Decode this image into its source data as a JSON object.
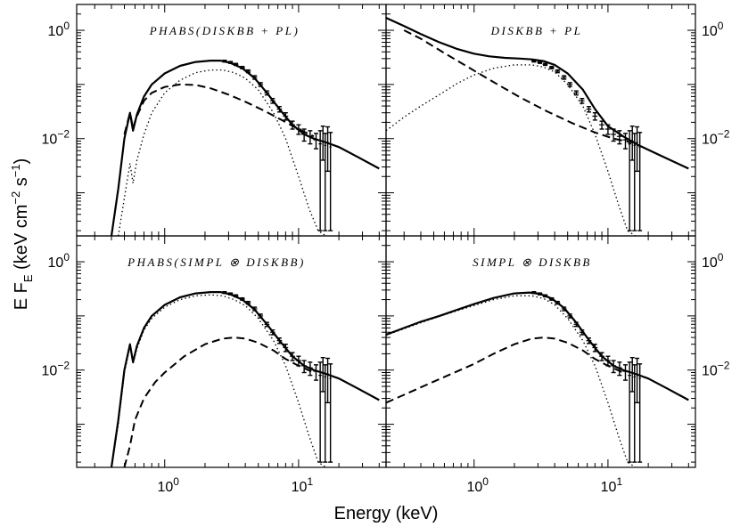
{
  "chart_data": {
    "type": "line",
    "layout": "2x2 grid of log-log panels sharing axes",
    "xlabel": "Energy (keV)",
    "ylabel": "E F_E (keV cm^-2 s^-1)",
    "ylabel_parts": {
      "main": "E F",
      "sub": "E",
      "open": " (keV cm",
      "sup1": "−2",
      "mid": " s",
      "sup2": "−1",
      "close": ")"
    },
    "xscale": "log",
    "yscale": "log",
    "xlim": [
      0.22,
      45
    ],
    "ylim": [
      0.00016,
      3.0
    ],
    "x_ticks": [
      {
        "value": 1,
        "label": "10",
        "exp": "0"
      },
      {
        "value": 10,
        "label": "10",
        "exp": "1"
      }
    ],
    "y_ticks": [
      {
        "value": 1,
        "label": "10",
        "exp": "0"
      },
      {
        "value": 0.01,
        "label": "10",
        "exp": "-2"
      }
    ],
    "line_styles": [
      "solid = total model",
      "dashed = power-law / SIMPL scattered component",
      "dotted = disk blackbody",
      "crosses = data"
    ],
    "panels": [
      {
        "title": "PHABS(DISKBB + PL)",
        "absorbed": true,
        "series": [
          {
            "name": "total",
            "style": "solid",
            "x": [
              0.4,
              0.45,
              0.5,
              0.55,
              0.58,
              0.62,
              0.7,
              0.8,
              1.0,
              1.3,
              1.7,
              2.2,
              2.6,
              3.1,
              3.8,
              4.7,
              5.8,
              7.2,
              9.0,
              11.0,
              13.0,
              16.0,
              20.0,
              28.0,
              40.0
            ],
            "y": [
              0.00016,
              0.0012,
              0.01,
              0.03,
              0.014,
              0.028,
              0.06,
              0.1,
              0.16,
              0.22,
              0.26,
              0.275,
              0.275,
              0.25,
              0.2,
              0.13,
              0.07,
              0.035,
              0.018,
              0.012,
              0.01,
              0.0085,
              0.007,
              0.0045,
              0.0028
            ]
          },
          {
            "name": "powerlaw",
            "style": "dashed",
            "x": [
              0.5,
              0.55,
              0.58,
              0.62,
              0.7,
              0.8,
              1.0,
              1.3,
              1.7,
              2.2,
              3.0,
              4.0,
              5.5,
              7.5,
              10.0,
              13.0
            ],
            "y": [
              0.012,
              0.03,
              0.016,
              0.026,
              0.05,
              0.07,
              0.09,
              0.1,
              0.098,
              0.085,
              0.065,
              0.048,
              0.033,
              0.022,
              0.015,
              0.011
            ]
          },
          {
            "name": "diskbb",
            "style": "dotted",
            "x": [
              0.45,
              0.5,
              0.55,
              0.58,
              0.62,
              0.7,
              0.8,
              1.0,
              1.3,
              1.7,
              2.2,
              2.7,
              3.3,
              4.0,
              5.0,
              6.5,
              8.0,
              10.0,
              12.0,
              14.0,
              16.0
            ],
            "y": [
              0.00016,
              0.0008,
              0.0035,
              0.0015,
              0.004,
              0.012,
              0.03,
              0.07,
              0.12,
              0.165,
              0.185,
              0.185,
              0.165,
              0.13,
              0.08,
              0.03,
              0.01,
              0.002,
              0.0005,
              0.0002,
              0.00016
            ]
          }
        ]
      },
      {
        "title": "DISKBB + PL",
        "absorbed": false,
        "series": [
          {
            "name": "total",
            "style": "solid",
            "x": [
              0.22,
              0.3,
              0.4,
              0.55,
              0.75,
              1.0,
              1.3,
              1.7,
              2.2,
              2.7,
              3.3,
              4.0,
              5.0,
              6.5,
              8.0,
              10.0,
              13.0,
              17.0,
              25.0,
              40.0
            ],
            "y": [
              1.7,
              1.2,
              0.85,
              0.6,
              0.45,
              0.37,
              0.33,
              0.31,
              0.3,
              0.29,
              0.27,
              0.23,
              0.16,
              0.08,
              0.035,
              0.017,
              0.011,
              0.0075,
              0.0048,
              0.0028
            ]
          },
          {
            "name": "powerlaw",
            "style": "dashed",
            "x": [
              0.3,
              0.4,
              0.6,
              1.0,
              1.5,
              2.2,
              3.5,
              5.5,
              8.0,
              11.0,
              15.0
            ],
            "y": [
              1.0,
              0.7,
              0.38,
              0.18,
              0.1,
              0.058,
              0.032,
              0.019,
              0.013,
              0.01,
              0.0085
            ]
          },
          {
            "name": "diskbb",
            "style": "dotted",
            "x": [
              0.22,
              0.3,
              0.4,
              0.55,
              0.75,
              1.0,
              1.4,
              2.0,
              2.7,
              3.3,
              4.0,
              5.0,
              6.5,
              8.0,
              10.0,
              12.0,
              14.0,
              16.0
            ],
            "y": [
              0.014,
              0.025,
              0.04,
              0.065,
              0.105,
              0.15,
              0.2,
              0.23,
              0.23,
              0.21,
              0.17,
              0.1,
              0.04,
              0.012,
              0.0025,
              0.0006,
              0.0002,
              0.00016
            ]
          }
        ]
      },
      {
        "title": "PHABS(SIMPL ⊗ DISKBB)",
        "absorbed": true,
        "series": [
          {
            "name": "total",
            "style": "solid",
            "x": [
              0.4,
              0.45,
              0.5,
              0.55,
              0.58,
              0.62,
              0.7,
              0.8,
              1.0,
              1.3,
              1.7,
              2.2,
              2.6,
              3.1,
              3.8,
              4.7,
              5.8,
              7.2,
              9.0,
              11.0,
              13.0,
              16.0,
              20.0,
              28.0,
              40.0
            ],
            "y": [
              0.00016,
              0.0012,
              0.01,
              0.03,
              0.014,
              0.028,
              0.06,
              0.1,
              0.16,
              0.22,
              0.26,
              0.275,
              0.275,
              0.25,
              0.2,
              0.13,
              0.07,
              0.035,
              0.018,
              0.012,
              0.01,
              0.0085,
              0.007,
              0.0045,
              0.0028
            ]
          },
          {
            "name": "scattered",
            "style": "dashed",
            "x": [
              0.5,
              0.55,
              0.6,
              0.7,
              0.85,
              1.0,
              1.4,
              2.0,
              2.7,
              3.3,
              4.0,
              5.0,
              6.5,
              8.0,
              10.0,
              13.0
            ],
            "y": [
              0.00016,
              0.0004,
              0.0012,
              0.003,
              0.006,
              0.009,
              0.018,
              0.03,
              0.038,
              0.04,
              0.038,
              0.032,
              0.023,
              0.016,
              0.012,
              0.009
            ]
          },
          {
            "name": "diskbb",
            "style": "dotted",
            "x": [
              0.4,
              0.45,
              0.5,
              0.55,
              0.58,
              0.62,
              0.7,
              0.8,
              1.0,
              1.3,
              1.7,
              2.2,
              2.7,
              3.3,
              4.0,
              5.0,
              6.5,
              8.0,
              10.0,
              12.0,
              14.0,
              16.0
            ],
            "y": [
              0.00016,
              0.001,
              0.009,
              0.027,
              0.013,
              0.025,
              0.055,
              0.09,
              0.145,
              0.2,
              0.235,
              0.245,
              0.235,
              0.2,
              0.155,
              0.09,
              0.035,
              0.012,
              0.0025,
              0.0006,
              0.0002,
              0.00016
            ]
          }
        ]
      },
      {
        "title": "SIMPL ⊗ DISKBB",
        "absorbed": false,
        "series": [
          {
            "name": "total",
            "style": "solid",
            "x": [
              0.22,
              0.3,
              0.4,
              0.55,
              0.75,
              1.0,
              1.4,
              2.0,
              2.6,
              3.1,
              3.8,
              4.7,
              5.8,
              7.2,
              9.0,
              11.0,
              13.0,
              16.0,
              20.0,
              28.0,
              40.0
            ],
            "y": [
              0.045,
              0.06,
              0.078,
              0.1,
              0.13,
              0.165,
              0.215,
              0.26,
              0.27,
              0.255,
              0.21,
              0.14,
              0.075,
              0.036,
              0.018,
              0.012,
              0.01,
              0.0085,
              0.007,
              0.0045,
              0.0028
            ]
          },
          {
            "name": "scattered",
            "style": "dashed",
            "x": [
              0.22,
              0.3,
              0.4,
              0.55,
              0.75,
              1.0,
              1.4,
              2.0,
              2.7,
              3.3,
              4.0,
              5.0,
              6.5,
              8.0,
              10.0,
              13.0
            ],
            "y": [
              0.0025,
              0.0035,
              0.0048,
              0.0068,
              0.0095,
              0.013,
              0.02,
              0.03,
              0.038,
              0.04,
              0.038,
              0.032,
              0.023,
              0.016,
              0.012,
              0.009
            ]
          },
          {
            "name": "diskbb",
            "style": "dotted",
            "x": [
              0.22,
              0.3,
              0.4,
              0.55,
              0.75,
              1.0,
              1.4,
              2.0,
              2.7,
              3.3,
              4.0,
              5.0,
              6.5,
              8.0,
              10.0,
              12.0,
              14.0,
              16.0
            ],
            "y": [
              0.044,
              0.058,
              0.075,
              0.098,
              0.125,
              0.155,
              0.2,
              0.235,
              0.235,
              0.21,
              0.16,
              0.09,
              0.035,
              0.012,
              0.0025,
              0.0006,
              0.0002,
              0.00016
            ]
          }
        ]
      }
    ],
    "data_points": {
      "style": "crosses with error bars",
      "x": [
        2.8,
        3.1,
        3.4,
        3.8,
        4.2,
        4.7,
        5.2,
        5.8,
        6.4,
        7.2,
        8.0,
        9.0,
        10.0,
        11.0,
        12.2,
        13.5,
        14.5,
        15.2,
        15.8,
        16.5,
        17.3
      ],
      "y": [
        0.27,
        0.255,
        0.235,
        0.205,
        0.175,
        0.135,
        0.1,
        0.07,
        0.05,
        0.035,
        0.026,
        0.018,
        0.015,
        0.012,
        0.011,
        0.0095,
        0.008,
        0.009,
        0.0075,
        0.0085,
        0.007
      ],
      "yerr_low": [
        0.01,
        0.01,
        0.01,
        0.01,
        0.01,
        0.01,
        0.008,
        0.006,
        0.005,
        0.004,
        0.004,
        0.003,
        0.003,
        0.003,
        0.003,
        0.003,
        0.0078,
        0.005,
        0.0073,
        0.006,
        0.0068
      ],
      "yerr_high": [
        0.01,
        0.01,
        0.01,
        0.01,
        0.01,
        0.01,
        0.008,
        0.006,
        0.005,
        0.004,
        0.004,
        0.003,
        0.003,
        0.003,
        0.003,
        0.003,
        0.006,
        0.008,
        0.005,
        0.008,
        0.006
      ],
      "xerr": [
        0.12,
        0.14,
        0.15,
        0.17,
        0.19,
        0.21,
        0.23,
        0.25,
        0.28,
        0.32,
        0.36,
        0.4,
        0.45,
        0.5,
        0.55,
        0.6,
        0.4,
        0.3,
        0.3,
        0.3,
        0.3
      ]
    }
  }
}
